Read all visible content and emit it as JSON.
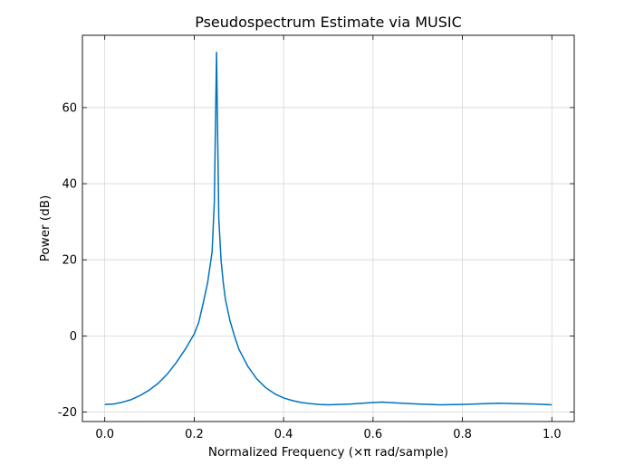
{
  "chart_data": {
    "type": "line",
    "title": "Pseudospectrum Estimate via MUSIC",
    "xlabel": "Normalized Frequency (×π rad/sample)",
    "ylabel": "Power (dB)",
    "xlim": [
      -0.05,
      1.05
    ],
    "ylim": [
      -22.5,
      79
    ],
    "xticks": [
      0.0,
      0.2,
      0.4,
      0.6,
      0.8,
      1.0
    ],
    "xtick_labels": [
      "0.0",
      "0.2",
      "0.4",
      "0.6",
      "0.8",
      "1.0"
    ],
    "yticks": [
      -20,
      0,
      20,
      40,
      60
    ],
    "ytick_labels": [
      "-20",
      "0",
      "20",
      "40",
      "60"
    ],
    "grid": true,
    "series": [
      {
        "color": "#0072bd",
        "x": [
          0.0,
          0.02,
          0.04,
          0.06,
          0.08,
          0.1,
          0.12,
          0.14,
          0.16,
          0.18,
          0.2,
          0.21,
          0.22,
          0.23,
          0.24,
          0.245,
          0.25,
          0.255,
          0.26,
          0.265,
          0.27,
          0.28,
          0.29,
          0.3,
          0.32,
          0.34,
          0.36,
          0.38,
          0.4,
          0.42,
          0.44,
          0.46,
          0.48,
          0.5,
          0.55,
          0.6,
          0.62,
          0.65,
          0.7,
          0.75,
          0.8,
          0.85,
          0.88,
          0.92,
          0.96,
          1.0
        ],
        "y": [
          -18.0,
          -17.9,
          -17.4,
          -16.7,
          -15.6,
          -14.2,
          -12.4,
          -10.0,
          -7.0,
          -3.5,
          0.5,
          3.5,
          8.5,
          14.0,
          22.0,
          35.0,
          74.5,
          31.0,
          20.0,
          14.0,
          9.5,
          4.0,
          0.0,
          -3.5,
          -8.0,
          -11.3,
          -13.6,
          -15.2,
          -16.3,
          -17.0,
          -17.5,
          -17.8,
          -18.0,
          -18.1,
          -17.9,
          -17.5,
          -17.4,
          -17.6,
          -17.9,
          -18.1,
          -18.0,
          -17.8,
          -17.7,
          -17.8,
          -17.9,
          -18.1
        ]
      }
    ]
  }
}
